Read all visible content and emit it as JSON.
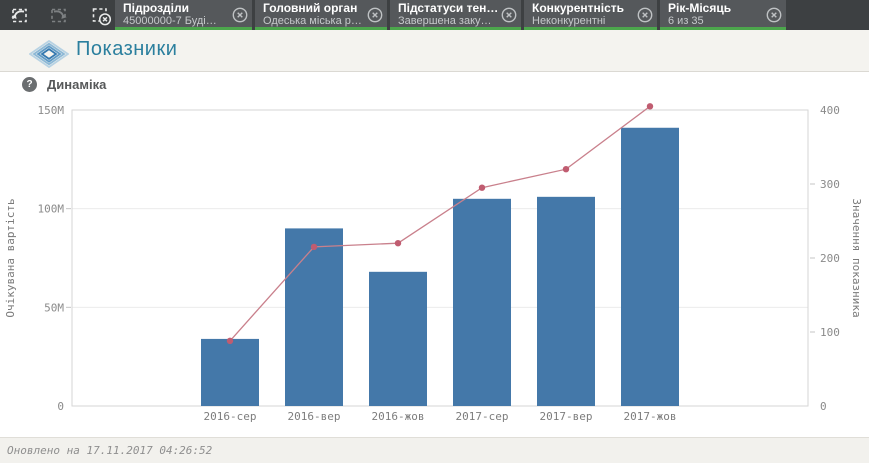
{
  "selection_bar": {
    "nav": {
      "back_icon": "step-back-arrow",
      "forward_icon": "step-forward-arrow",
      "clear_icon": "clear-all-selections"
    },
    "filters": [
      {
        "field": "Підрозділи",
        "value": "45000000-7 Буді…"
      },
      {
        "field": "Головний орган",
        "value": "Одеська міська р…"
      },
      {
        "field": "Підстатуси тен…",
        "value": "Завершена заку…"
      },
      {
        "field": "Конкурентність",
        "value": "Неконкурентні"
      },
      {
        "field": "Рік-Місяць",
        "value": "6 из 35"
      }
    ]
  },
  "header": {
    "app_title": "Показники"
  },
  "object": {
    "title": "Динаміка",
    "help_icon": "?"
  },
  "footer": {
    "updated": "Оновлено на 17.11.2017 04:26:52"
  },
  "colors": {
    "bar": "#4478a9",
    "line": "#c9808c",
    "point": "#c05c70",
    "selection_green": "#4ca64c",
    "app_title": "#2b7f9e"
  },
  "chart_data": {
    "type": "combo",
    "title": "Динаміка",
    "categories": [
      "2016-сер",
      "2016-вер",
      "2016-жов",
      "2017-сер",
      "2017-вер",
      "2017-жов"
    ],
    "series": [
      {
        "name": "Очікувана вартість",
        "type": "bar",
        "axis": "left",
        "values": [
          34000000,
          90000000,
          68000000,
          105000000,
          106000000,
          141000000
        ]
      },
      {
        "name": "Значення показника",
        "type": "line",
        "axis": "right",
        "values": [
          88,
          215,
          220,
          295,
          320,
          405
        ]
      }
    ],
    "left_axis": {
      "label": "Очікувана вартість",
      "min": 0,
      "max": 150000000,
      "ticks": [
        {
          "value": 0,
          "label": "0"
        },
        {
          "value": 50000000,
          "label": "50M"
        },
        {
          "value": 100000000,
          "label": "100M"
        },
        {
          "value": 150000000,
          "label": "150M"
        }
      ]
    },
    "right_axis": {
      "label": "Значення показника",
      "min": 0,
      "max": 400,
      "ticks": [
        {
          "value": 0,
          "label": "0"
        },
        {
          "value": 100,
          "label": "100"
        },
        {
          "value": 200,
          "label": "200"
        },
        {
          "value": 300,
          "label": "300"
        },
        {
          "value": 400,
          "label": "400"
        }
      ]
    },
    "grid": "horizontal",
    "legend": "none"
  }
}
